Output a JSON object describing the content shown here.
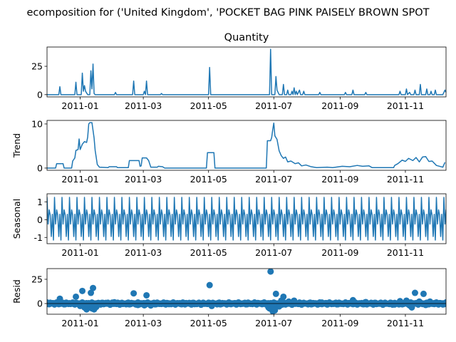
{
  "chart_data": {
    "type": "line",
    "title": "ecomposition for ('United Kingdom', 'POCKET BAG PINK PAISELY BROWN SPOT",
    "x_tick_labels": [
      "2011-01",
      "2011-03",
      "2011-05",
      "2011-07",
      "2011-09",
      "2011-11"
    ],
    "x_tick_dates": [
      "2011-01-01",
      "2011-03-01",
      "2011-05-01",
      "2011-07-01",
      "2011-09-01",
      "2011-11-01"
    ],
    "x_range": [
      "2010-12-01",
      "2011-12-09"
    ],
    "line_color": "#1f77b4",
    "panels": [
      {
        "name": "observed",
        "subtitle": "Quantity",
        "ylabel": "",
        "ylim": [
          -2,
          42
        ],
        "yticks": [
          0,
          25
        ],
        "type": "line",
        "points": [
          [
            "2010-12-01",
            0
          ],
          [
            "2010-12-12",
            0
          ],
          [
            "2010-12-13",
            7
          ],
          [
            "2010-12-14",
            0
          ],
          [
            "2010-12-27",
            0
          ],
          [
            "2010-12-28",
            11
          ],
          [
            "2010-12-29",
            0
          ],
          [
            "2011-01-02",
            0
          ],
          [
            "2011-01-03",
            19
          ],
          [
            "2011-01-04",
            3
          ],
          [
            "2011-01-05",
            8
          ],
          [
            "2011-01-06",
            3
          ],
          [
            "2011-01-08",
            0
          ],
          [
            "2011-01-10",
            0
          ],
          [
            "2011-01-11",
            21
          ],
          [
            "2011-01-12",
            5
          ],
          [
            "2011-01-13",
            27
          ],
          [
            "2011-01-14",
            1
          ],
          [
            "2011-01-15",
            0
          ],
          [
            "2011-02-02",
            0
          ],
          [
            "2011-02-03",
            2
          ],
          [
            "2011-02-04",
            0
          ],
          [
            "2011-02-19",
            0
          ],
          [
            "2011-02-20",
            12
          ],
          [
            "2011-02-21",
            0
          ],
          [
            "2011-03-01",
            0
          ],
          [
            "2011-03-02",
            3
          ],
          [
            "2011-03-03",
            0
          ],
          [
            "2011-03-04",
            12
          ],
          [
            "2011-03-05",
            0
          ],
          [
            "2011-03-17",
            0
          ],
          [
            "2011-03-18",
            1
          ],
          [
            "2011-03-19",
            0
          ],
          [
            "2011-05-01",
            0
          ],
          [
            "2011-05-02",
            24
          ],
          [
            "2011-05-03",
            0
          ],
          [
            "2011-06-27",
            0
          ],
          [
            "2011-06-28",
            40
          ],
          [
            "2011-06-29",
            0
          ],
          [
            "2011-07-02",
            0
          ],
          [
            "2011-07-03",
            16
          ],
          [
            "2011-07-04",
            4
          ],
          [
            "2011-07-06",
            0
          ],
          [
            "2011-07-09",
            0
          ],
          [
            "2011-07-10",
            9
          ],
          [
            "2011-07-11",
            0
          ],
          [
            "2011-07-13",
            0
          ],
          [
            "2011-07-14",
            4
          ],
          [
            "2011-07-15",
            0
          ],
          [
            "2011-07-17",
            0
          ],
          [
            "2011-07-18",
            3
          ],
          [
            "2011-07-19",
            0
          ],
          [
            "2011-07-20",
            6
          ],
          [
            "2011-07-21",
            0
          ],
          [
            "2011-07-22",
            3
          ],
          [
            "2011-07-23",
            0
          ],
          [
            "2011-07-25",
            4
          ],
          [
            "2011-07-26",
            0
          ],
          [
            "2011-07-28",
            0
          ],
          [
            "2011-07-29",
            3
          ],
          [
            "2011-07-30",
            0
          ],
          [
            "2011-08-12",
            0
          ],
          [
            "2011-08-13",
            2
          ],
          [
            "2011-08-14",
            0
          ],
          [
            "2011-09-05",
            0
          ],
          [
            "2011-09-06",
            2
          ],
          [
            "2011-09-07",
            0
          ],
          [
            "2011-09-12",
            0
          ],
          [
            "2011-09-13",
            4
          ],
          [
            "2011-09-14",
            0
          ],
          [
            "2011-09-24",
            0
          ],
          [
            "2011-09-25",
            2
          ],
          [
            "2011-09-26",
            0
          ],
          [
            "2011-10-26",
            0
          ],
          [
            "2011-10-27",
            3
          ],
          [
            "2011-10-28",
            0
          ],
          [
            "2011-11-01",
            0
          ],
          [
            "2011-11-02",
            5
          ],
          [
            "2011-11-03",
            0
          ],
          [
            "2011-11-05",
            2
          ],
          [
            "2011-11-06",
            0
          ],
          [
            "2011-11-09",
            0
          ],
          [
            "2011-11-10",
            4
          ],
          [
            "2011-11-11",
            0
          ],
          [
            "2011-11-14",
            0
          ],
          [
            "2011-11-15",
            9
          ],
          [
            "2011-11-16",
            0
          ],
          [
            "2011-11-20",
            0
          ],
          [
            "2011-11-21",
            5
          ],
          [
            "2011-11-22",
            0
          ],
          [
            "2011-11-24",
            0
          ],
          [
            "2011-11-25",
            3
          ],
          [
            "2011-11-26",
            0
          ],
          [
            "2011-11-28",
            0
          ],
          [
            "2011-11-29",
            4
          ],
          [
            "2011-11-30",
            0
          ],
          [
            "2011-12-06",
            0
          ],
          [
            "2011-12-07",
            2
          ],
          [
            "2011-12-08",
            4
          ],
          [
            "2011-12-09",
            2
          ]
        ]
      },
      {
        "name": "trend",
        "subtitle": "",
        "ylabel": "Trend",
        "ylim": [
          -0.5,
          10.8
        ],
        "yticks": [
          0,
          10
        ],
        "type": "line",
        "points": [
          [
            "2010-12-01",
            0
          ],
          [
            "2010-12-09",
            0
          ],
          [
            "2010-12-10",
            1
          ],
          [
            "2010-12-16",
            1
          ],
          [
            "2010-12-17",
            0
          ],
          [
            "2010-12-24",
            0
          ],
          [
            "2010-12-25",
            1.6
          ],
          [
            "2010-12-27",
            2.3
          ],
          [
            "2010-12-28",
            4
          ],
          [
            "2010-12-30",
            4.2
          ],
          [
            "2010-12-31",
            6.6
          ],
          [
            "2011-01-01",
            4.2
          ],
          [
            "2011-01-03",
            5.4
          ],
          [
            "2011-01-05",
            6
          ],
          [
            "2011-01-07",
            5.8
          ],
          [
            "2011-01-08",
            7
          ],
          [
            "2011-01-09",
            10
          ],
          [
            "2011-01-10",
            10.3
          ],
          [
            "2011-01-12",
            10.3
          ],
          [
            "2011-01-14",
            6.8
          ],
          [
            "2011-01-15",
            4
          ],
          [
            "2011-01-17",
            0.8
          ],
          [
            "2011-01-19",
            0.2
          ],
          [
            "2011-01-27",
            0.1
          ],
          [
            "2011-01-28",
            0.3
          ],
          [
            "2011-02-04",
            0.3
          ],
          [
            "2011-02-05",
            0.1
          ],
          [
            "2011-02-15",
            0.1
          ],
          [
            "2011-02-16",
            1.7
          ],
          [
            "2011-02-25",
            1.7
          ],
          [
            "2011-02-26",
            0.4
          ],
          [
            "2011-02-27",
            0.5
          ],
          [
            "2011-02-28",
            2.3
          ],
          [
            "2011-03-04",
            2.3
          ],
          [
            "2011-03-06",
            1.7
          ],
          [
            "2011-03-08",
            0.2
          ],
          [
            "2011-03-14",
            0.2
          ],
          [
            "2011-03-15",
            0.4
          ],
          [
            "2011-03-19",
            0.3
          ],
          [
            "2011-03-21",
            0
          ],
          [
            "2011-04-29",
            0
          ],
          [
            "2011-04-30",
            3.5
          ],
          [
            "2011-05-06",
            3.5
          ],
          [
            "2011-05-07",
            0
          ],
          [
            "2011-06-24",
            0
          ],
          [
            "2011-06-25",
            6.2
          ],
          [
            "2011-06-28",
            6.2
          ],
          [
            "2011-06-29",
            6.9
          ],
          [
            "2011-06-30",
            8.7
          ],
          [
            "2011-07-01",
            10.2
          ],
          [
            "2011-07-02",
            7.3
          ],
          [
            "2011-07-04",
            6.5
          ],
          [
            "2011-07-06",
            3.9
          ],
          [
            "2011-07-08",
            2.8
          ],
          [
            "2011-07-10",
            2.2
          ],
          [
            "2011-07-12",
            2.5
          ],
          [
            "2011-07-14",
            1.4
          ],
          [
            "2011-07-17",
            1.6
          ],
          [
            "2011-07-21",
            1.0
          ],
          [
            "2011-07-24",
            1.2
          ],
          [
            "2011-07-27",
            0.5
          ],
          [
            "2011-07-31",
            0.7
          ],
          [
            "2011-08-05",
            0.3
          ],
          [
            "2011-08-10",
            0.1
          ],
          [
            "2011-08-20",
            0.2
          ],
          [
            "2011-08-25",
            0.1
          ],
          [
            "2011-09-03",
            0.4
          ],
          [
            "2011-09-10",
            0.3
          ],
          [
            "2011-09-17",
            0.6
          ],
          [
            "2011-09-22",
            0.4
          ],
          [
            "2011-09-28",
            0.5
          ],
          [
            "2011-10-01",
            0.1
          ],
          [
            "2011-10-21",
            0.1
          ],
          [
            "2011-10-22",
            0.6
          ],
          [
            "2011-10-25",
            1.0
          ],
          [
            "2011-10-29",
            1.8
          ],
          [
            "2011-11-01",
            1.5
          ],
          [
            "2011-11-04",
            2.2
          ],
          [
            "2011-11-08",
            1.7
          ],
          [
            "2011-11-11",
            2.4
          ],
          [
            "2011-11-14",
            1.4
          ],
          [
            "2011-11-17",
            2.5
          ],
          [
            "2011-11-20",
            2.6
          ],
          [
            "2011-11-23",
            1.5
          ],
          [
            "2011-11-26",
            1.6
          ],
          [
            "2011-11-30",
            0.6
          ],
          [
            "2011-12-03",
            0.4
          ],
          [
            "2011-12-06",
            0.2
          ],
          [
            "2011-12-08",
            1.3
          ]
        ]
      },
      {
        "name": "seasonal",
        "subtitle": "",
        "ylabel": "Seasonal",
        "ylim": [
          -1.35,
          1.45
        ],
        "yticks": [
          -1,
          0,
          1
        ],
        "type": "line",
        "period_days": 7,
        "cycle": [
          -1.15,
          1.25,
          -0.25,
          0.55,
          0.25,
          -0.95,
          0.3
        ]
      },
      {
        "name": "resid",
        "subtitle": "",
        "ylabel": "Resid",
        "ylim": [
          -11,
          36
        ],
        "yticks": [
          0,
          25
        ],
        "type": "scatter",
        "points": [
          [
            "2010-12-04",
            0.8
          ],
          [
            "2010-12-08",
            -0.6
          ],
          [
            "2010-12-13",
            5
          ],
          [
            "2010-12-18",
            -0.5
          ],
          [
            "2010-12-22",
            0.4
          ],
          [
            "2010-12-28",
            7
          ],
          [
            "2010-12-31",
            -1.2
          ],
          [
            "2011-01-01",
            -2.5
          ],
          [
            "2011-01-03",
            13
          ],
          [
            "2011-01-05",
            -4
          ],
          [
            "2011-01-07",
            -6
          ],
          [
            "2011-01-09",
            -1
          ],
          [
            "2011-01-11",
            11
          ],
          [
            "2011-01-12",
            -5
          ],
          [
            "2011-01-13",
            16
          ],
          [
            "2011-01-14",
            -6
          ],
          [
            "2011-01-16",
            -3.5
          ],
          [
            "2011-01-20",
            -0.8
          ],
          [
            "2011-01-25",
            0.7
          ],
          [
            "2011-02-02",
            1.3
          ],
          [
            "2011-02-10",
            -0.4
          ],
          [
            "2011-02-20",
            10.5
          ],
          [
            "2011-02-24",
            -1.5
          ],
          [
            "2011-03-02",
            -1.8
          ],
          [
            "2011-03-04",
            8.5
          ],
          [
            "2011-03-08",
            -2
          ],
          [
            "2011-03-14",
            0.5
          ],
          [
            "2011-03-25",
            -0.6
          ],
          [
            "2011-04-10",
            0.5
          ],
          [
            "2011-04-20",
            -0.5
          ],
          [
            "2011-05-02",
            19
          ],
          [
            "2011-05-04",
            -2.5
          ],
          [
            "2011-05-20",
            0.4
          ],
          [
            "2011-06-05",
            -0.5
          ],
          [
            "2011-06-20",
            0.3
          ],
          [
            "2011-06-26",
            -4
          ],
          [
            "2011-06-27",
            -5
          ],
          [
            "2011-06-28",
            33
          ],
          [
            "2011-06-29",
            -6
          ],
          [
            "2011-06-30",
            -8
          ],
          [
            "2011-07-01",
            -3
          ],
          [
            "2011-07-02",
            -7
          ],
          [
            "2011-07-03",
            10
          ],
          [
            "2011-07-04",
            -1
          ],
          [
            "2011-07-06",
            -3
          ],
          [
            "2011-07-08",
            3
          ],
          [
            "2011-07-10",
            7
          ],
          [
            "2011-07-12",
            -1
          ],
          [
            "2011-07-15",
            2
          ],
          [
            "2011-07-20",
            3
          ],
          [
            "2011-07-25",
            1
          ],
          [
            "2011-08-05",
            0.6
          ],
          [
            "2011-08-15",
            1
          ],
          [
            "2011-08-30",
            -0.5
          ],
          [
            "2011-09-13",
            3.5
          ],
          [
            "2011-09-25",
            1.5
          ],
          [
            "2011-10-10",
            0.4
          ],
          [
            "2011-10-22",
            -1
          ],
          [
            "2011-10-27",
            2.5
          ],
          [
            "2011-11-02",
            3
          ],
          [
            "2011-11-05",
            -2
          ],
          [
            "2011-11-07",
            -4
          ],
          [
            "2011-11-10",
            11
          ],
          [
            "2011-11-14",
            2
          ],
          [
            "2011-11-18",
            10
          ],
          [
            "2011-11-20",
            -1.5
          ],
          [
            "2011-11-24",
            2
          ],
          [
            "2011-11-28",
            0.5
          ],
          [
            "2011-12-02",
            -0.5
          ],
          [
            "2011-12-06",
            -1
          ],
          [
            "2011-12-08",
            0.2
          ]
        ],
        "baseline_jitter_amplitude": 1.2
      }
    ]
  }
}
